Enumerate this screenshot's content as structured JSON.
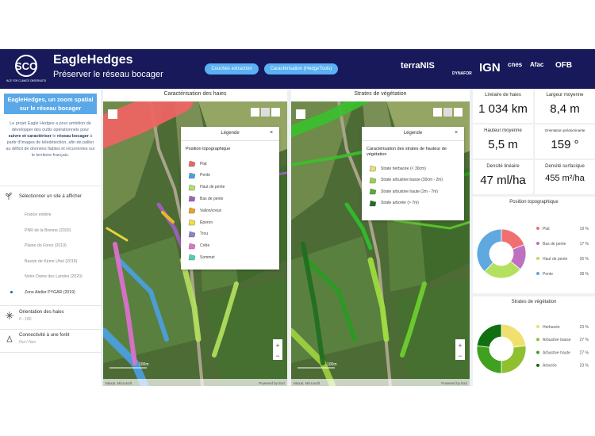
{
  "header": {
    "logo": "SCO",
    "logo_sub": "SPACE FOR CLIMATE OBSERVATORY",
    "title": "EagleHedges",
    "subtitle": "Préserver le réseau bocager",
    "buttons": [
      "Couches extraction",
      "Caractérisation (HedgeTools)"
    ],
    "partners": [
      "terraNIS",
      "DYNAFOR",
      "IGN",
      "cnes",
      "Afac",
      "OFB"
    ]
  },
  "sidebar": {
    "heading": "EagleHedges, un zoom spatial sur le réseau bocager",
    "intro": [
      "Le projet Eagle Hedges a pour ambition de développer des outils opérationnels pour ",
      "suivre et caractériser",
      " le ",
      "réseau bocager",
      " à partir d'images de télédétection, afin de pallier au déficit de données fiables et récurrentes sur le territoire français."
    ],
    "site_prompt": "Sélectionner un site à afficher",
    "sites": [
      "France entière",
      "PNR de la Brenne (2020)",
      "Plaine du Forez (2019)",
      "Bassin de Kème Uhel (2018)",
      "Notre Dame des Landes (2020)",
      "Zone Atelier PYGAR (2019)"
    ],
    "filters": [
      {
        "title": "Orientation des haies",
        "sub": "0 - 180"
      },
      {
        "title": "Connectivité à une forêt",
        "sub": "Oui / Non"
      }
    ]
  },
  "maps": [
    {
      "title": "Caractérisation des haies",
      "legend_title": "Légende",
      "legend_heading": "Position topographique",
      "items": [
        {
          "label": "Plat",
          "color": "#f06464"
        },
        {
          "label": "Pente",
          "color": "#4aa0e0"
        },
        {
          "label": "Haut de pente",
          "color": "#b4e060"
        },
        {
          "label": "Bas de pente",
          "color": "#a060c0"
        },
        {
          "label": "Vallon/creux",
          "color": "#f0a020"
        },
        {
          "label": "Éperon",
          "color": "#f0e040"
        },
        {
          "label": "Trou",
          "color": "#9080d0"
        },
        {
          "label": "Crête",
          "color": "#e070d0"
        },
        {
          "label": "Sommet",
          "color": "#50d0b0"
        }
      ],
      "scale": "100m",
      "attribution": "Maxar, Microsoft",
      "powered": "Powered by Esri"
    },
    {
      "title": "Strates de végétation",
      "legend_title": "Légende",
      "legend_heading": "Caractérisation des strates de hauteur de végétation",
      "items": [
        {
          "label": "Strate herbacée (< 30cm)",
          "color": "#e8e070"
        },
        {
          "label": "Strate arbustive basse (30cm - 2m)",
          "color": "#a0d040"
        },
        {
          "label": "Strate arbustive haute (2m - 7m)",
          "color": "#50b030"
        },
        {
          "label": "Strate arborée (> 7m)",
          "color": "#1f6e1f"
        }
      ],
      "scale": "100m",
      "attribution": "Maxar, Microsoft",
      "powered": "Powered by Esri"
    }
  ],
  "stats": [
    {
      "label": "Linéaire de haies",
      "value": "1 034 km"
    },
    {
      "label": "Largeur moyenne",
      "value": "8,4 m"
    },
    {
      "label": "Hauteur moyenne",
      "value": "5,5 m"
    },
    {
      "label": "Orientation prédominante",
      "value": "159 °"
    },
    {
      "label": "Densité linéaire",
      "value": "47 ml/ha"
    },
    {
      "label": "Densité surfacique",
      "value": "455 m²/ha"
    }
  ],
  "donuts": [
    {
      "type": "donut",
      "title": "Position topographique",
      "categories": [
        "Plat",
        "Bas de pente",
        "Haut de pente",
        "Pente"
      ],
      "values": [
        19,
        17,
        26,
        38
      ],
      "value_labels": [
        "19 %",
        "17 %",
        "26 %",
        "38 %"
      ],
      "colors": [
        "#f07070",
        "#c070c0",
        "#b4e060",
        "#60a8e0"
      ]
    },
    {
      "type": "donut",
      "title": "Strates de végétation",
      "categories": [
        "Herbacée",
        "Arbustive basse",
        "Arbustive haute",
        "Arborée"
      ],
      "values": [
        23,
        27,
        27,
        23
      ],
      "value_labels": [
        "23 %",
        "27 %",
        "27 %",
        "23 %"
      ],
      "colors": [
        "#f0e070",
        "#90c030",
        "#40a020",
        "#107010"
      ]
    }
  ]
}
